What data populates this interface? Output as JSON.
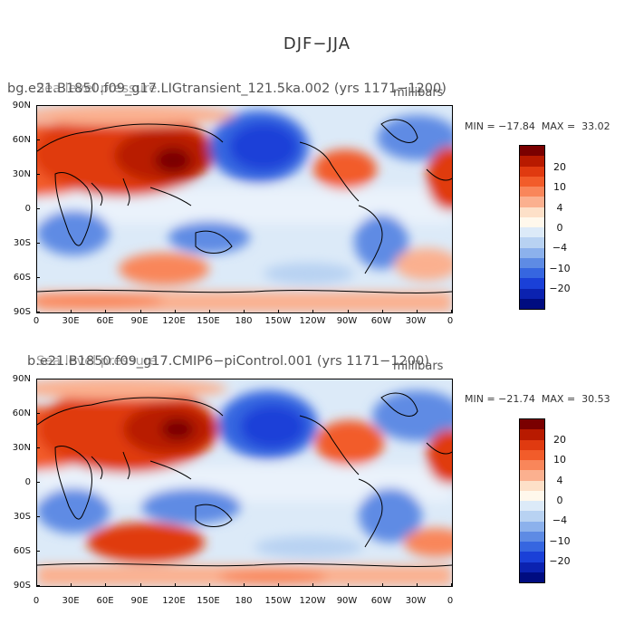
{
  "title": "DJF−JJA",
  "panels": [
    {
      "name": "bg.e21.B1850.f09_g17.LIGtransient_121.5ka.002 (yrs 1171−1200)",
      "overlay": "Sea level pressure",
      "units": "millibars",
      "min": "MIN = −17.84",
      "max": "MAX =  33.02"
    },
    {
      "name": "b.e21.B1850.f09_g17.CMIP6−piControl.001 (yrs 1171−1200)",
      "overlay": "Sea level pressure",
      "units": "millibars",
      "min": "MIN = −21.74",
      "max": "MAX =  30.53"
    }
  ],
  "axes": {
    "lat_labels": [
      "90N",
      "60N",
      "30N",
      "0",
      "30S",
      "60S",
      "90S"
    ],
    "lon_labels": [
      "0",
      "30E",
      "60E",
      "90E",
      "120E",
      "150E",
      "180",
      "150W",
      "120W",
      "90W",
      "60W",
      "30W",
      "0"
    ]
  },
  "colorbar": {
    "labels": [
      "20",
      "10",
      "4",
      "0",
      "−4",
      "−10",
      "−20"
    ],
    "colors": [
      "#7a0000",
      "#b81a00",
      "#e03a10",
      "#f25c2a",
      "#f9865a",
      "#fbb08f",
      "#fde0c8",
      "#fff8ec",
      "#dceaf8",
      "#b8d2f2",
      "#8cb1ec",
      "#5e8be4",
      "#3666e0",
      "#1a40d8",
      "#0b22b0",
      "#000c80"
    ]
  },
  "colors": {
    "strong_high": "#c82a10",
    "high": "#f25c2a",
    "weak_high": "#fbb08f",
    "neutral": "#fff8ec",
    "weak_low": "#b8d2f2",
    "low": "#5e8be4",
    "strong_low": "#1a40d8"
  }
}
